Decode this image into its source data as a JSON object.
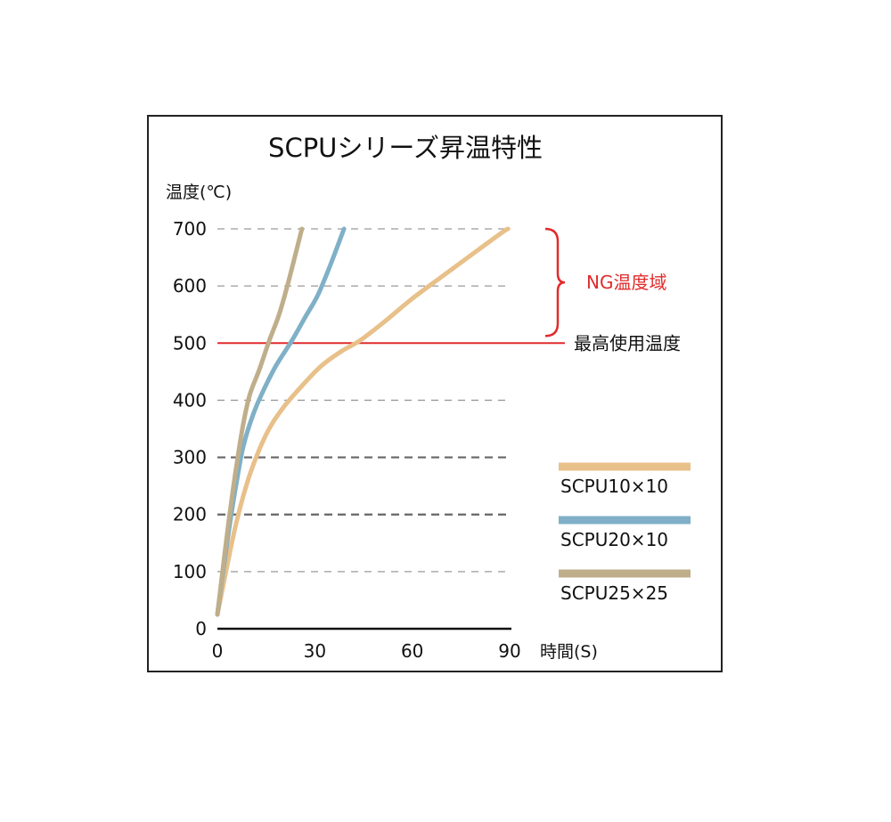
{
  "chart_data": {
    "type": "line",
    "title": "SCPUシリーズ昇温特性",
    "ylabel": "温度(℃)",
    "xlabel": "時間(S)",
    "xlim": [
      0,
      90
    ],
    "ylim": [
      0,
      700
    ],
    "x_ticks": [
      0,
      30,
      60,
      90
    ],
    "y_ticks": [
      0,
      100,
      200,
      300,
      400,
      500,
      600,
      700
    ],
    "grid": "horizontal dashed",
    "legend_position": "right",
    "series": [
      {
        "name": "SCPU10×10",
        "color": "#e8c089",
        "points": [
          [
            0,
            25
          ],
          [
            3,
            110
          ],
          [
            6,
            190
          ],
          [
            10,
            270
          ],
          [
            15,
            340
          ],
          [
            20,
            385
          ],
          [
            26,
            425
          ],
          [
            32,
            460
          ],
          [
            38,
            485
          ],
          [
            44,
            505
          ],
          [
            52,
            540
          ],
          [
            60,
            578
          ],
          [
            70,
            620
          ],
          [
            80,
            662
          ],
          [
            88,
            695
          ],
          [
            89.5,
            700
          ]
        ]
      },
      {
        "name": "SCPU20×10",
        "color": "#7fb0c7",
        "points": [
          [
            0,
            25
          ],
          [
            2,
            110
          ],
          [
            4,
            190
          ],
          [
            6,
            260
          ],
          [
            8,
            320
          ],
          [
            11,
            375
          ],
          [
            14,
            415
          ],
          [
            18,
            460
          ],
          [
            23,
            505
          ],
          [
            27,
            545
          ],
          [
            31,
            585
          ],
          [
            35,
            640
          ],
          [
            39,
            700
          ]
        ]
      },
      {
        "name": "SCPU25×25",
        "color": "#bfae8a",
        "points": [
          [
            0,
            25
          ],
          [
            2,
            120
          ],
          [
            4,
            210
          ],
          [
            6,
            290
          ],
          [
            8,
            360
          ],
          [
            10,
            410
          ],
          [
            13,
            455
          ],
          [
            16,
            505
          ],
          [
            19,
            550
          ],
          [
            22,
            610
          ],
          [
            26,
            700
          ]
        ]
      }
    ],
    "reference_line": {
      "value": 500,
      "color": "#e12b2b",
      "label": "最高使用温度"
    },
    "region_annotation": {
      "from": 500,
      "to": 700,
      "color": "#e12b2b",
      "label": "NG温度域"
    }
  }
}
